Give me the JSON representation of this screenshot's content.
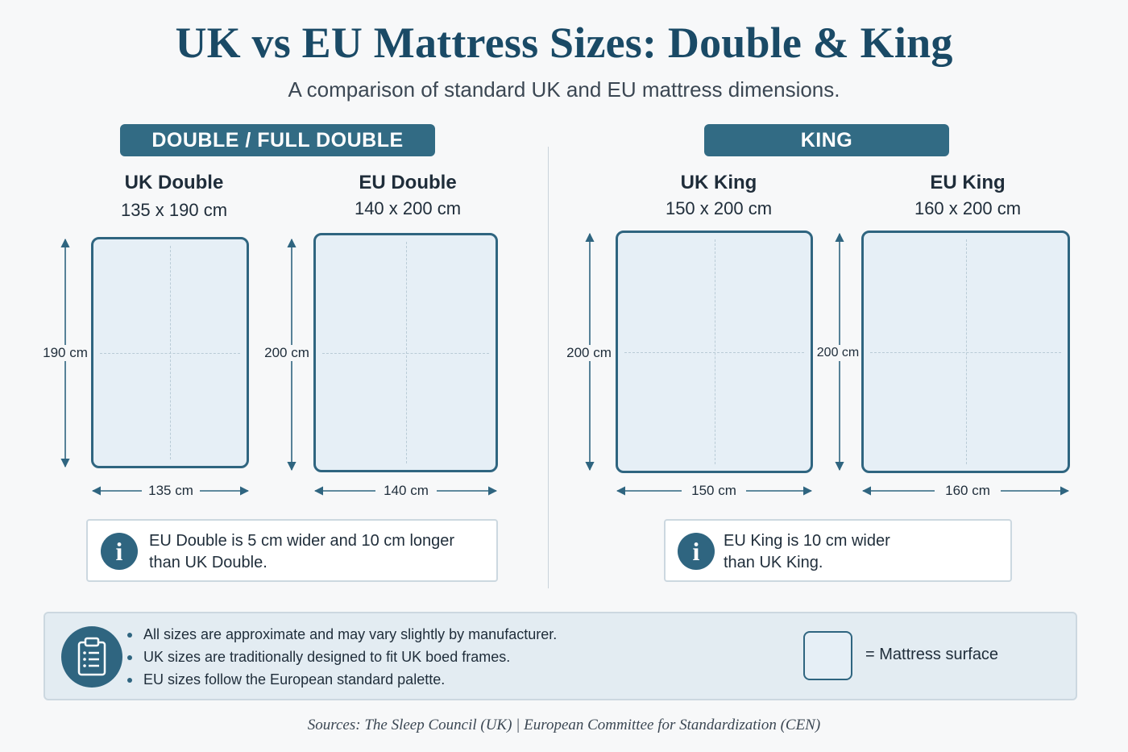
{
  "title": "UK vs EU Mattress Sizes: Double & King",
  "subtitle": "A comparison of standard UK and EU mattress dimensions.",
  "sections": {
    "double": {
      "badge": "DOUBLE / FULL DOUBLE",
      "uk": {
        "name": "UK Double",
        "dims": "135 x 190 cm",
        "width_label": "135 cm",
        "length_label": "190 cm"
      },
      "eu": {
        "name": "EU Double",
        "dims": "140 x 200 cm",
        "width_label": "140 cm",
        "length_label": "200 cm"
      },
      "note_line1": "EU Double is 5 cm wider and 10 cm longer",
      "note_line2": "than UK Double."
    },
    "king": {
      "badge": "KING",
      "uk": {
        "name": "UK King",
        "dims": "150 x 200 cm",
        "width_label": "150 cm",
        "length_label": "200 cm"
      },
      "eu": {
        "name": "EU King",
        "dims": "160 x 200 cm",
        "width_label": "160 cm",
        "length_label": "200 cm"
      },
      "note_line1": "EU King is 10 cm wider",
      "note_line2": "than UK King."
    }
  },
  "info_icon_glyph": "i",
  "footer": {
    "notes": [
      "All sizes are approximate and may vary slightly by manufacturer.",
      "UK sizes are traditionally designed to fit UK boed frames.",
      "EU sizes follow the European standard palette."
    ],
    "legend_label": "=  Mattress surface"
  },
  "sources": "Sources: The Sleep Council (UK)  |  European Committee for Standardization (CEN)",
  "colors": {
    "accent": "#326b84",
    "title": "#1a4a66",
    "mattress_fill": "#e6eff6",
    "mattress_border": "#2f6580"
  },
  "icons": [
    "info-icon",
    "clipboard-icon"
  ]
}
